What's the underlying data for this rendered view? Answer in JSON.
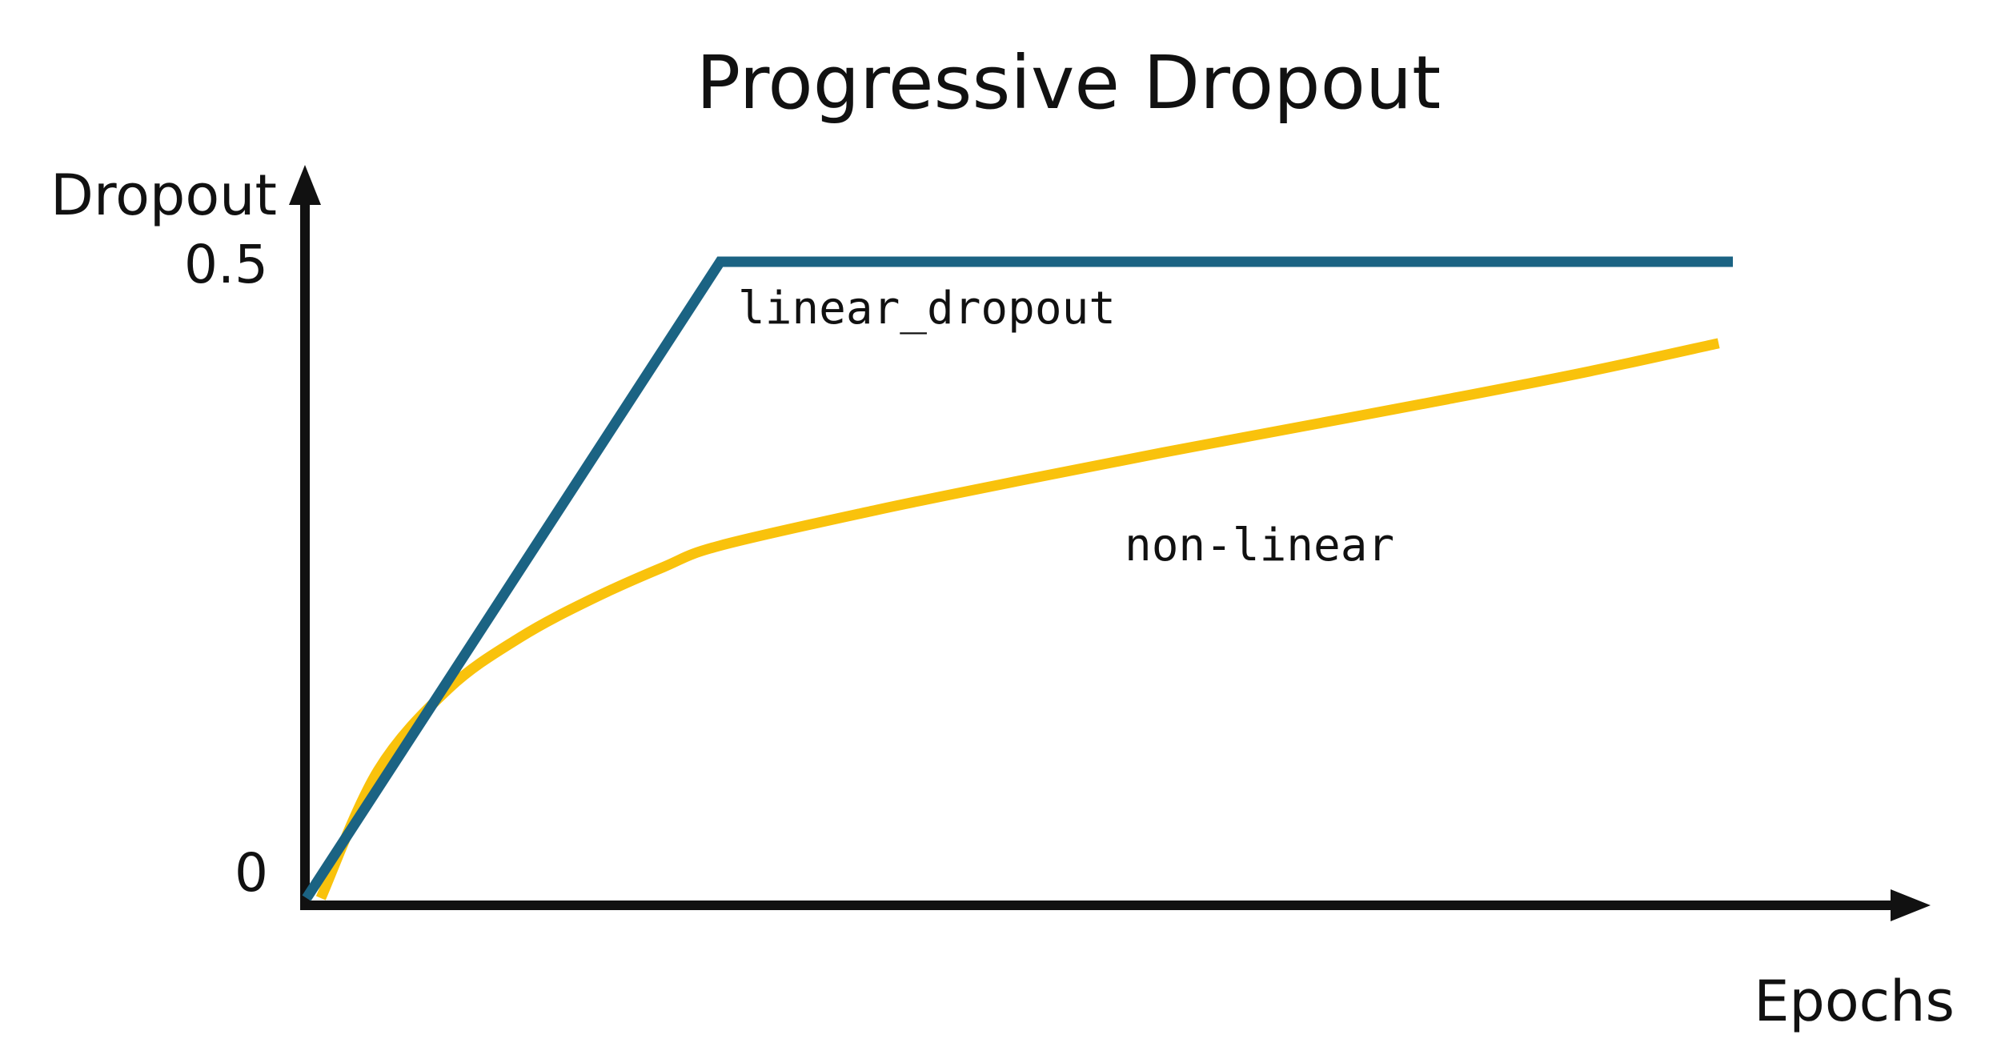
{
  "chart_data": {
    "type": "line",
    "title": "Progressive Dropout",
    "xlabel": "Epochs",
    "ylabel": "Dropout",
    "ylim": [
      0,
      0.5
    ],
    "ytick_labels": [
      "0",
      "0.5"
    ],
    "x_ticks_shown": false,
    "grid": false,
    "legend": "none (inline labels)",
    "series": [
      {
        "name": "linear_dropout",
        "color": "#1b6383",
        "points": [
          [
            0,
            0
          ],
          [
            0.29,
            0.5
          ],
          [
            1.0,
            0.5
          ]
        ]
      },
      {
        "name": "non-linear",
        "color": "#f9c20c",
        "points": [
          [
            0.01,
            0
          ],
          [
            0.05,
            0.1
          ],
          [
            0.1,
            0.165
          ],
          [
            0.15,
            0.205
          ],
          [
            0.2,
            0.235
          ],
          [
            0.25,
            0.26
          ],
          [
            0.29,
            0.277
          ],
          [
            0.4,
            0.305
          ],
          [
            0.5,
            0.328
          ],
          [
            0.6,
            0.35
          ],
          [
            0.7,
            0.371
          ],
          [
            0.8,
            0.392
          ],
          [
            0.9,
            0.414
          ],
          [
            0.99,
            0.436
          ]
        ]
      }
    ]
  }
}
